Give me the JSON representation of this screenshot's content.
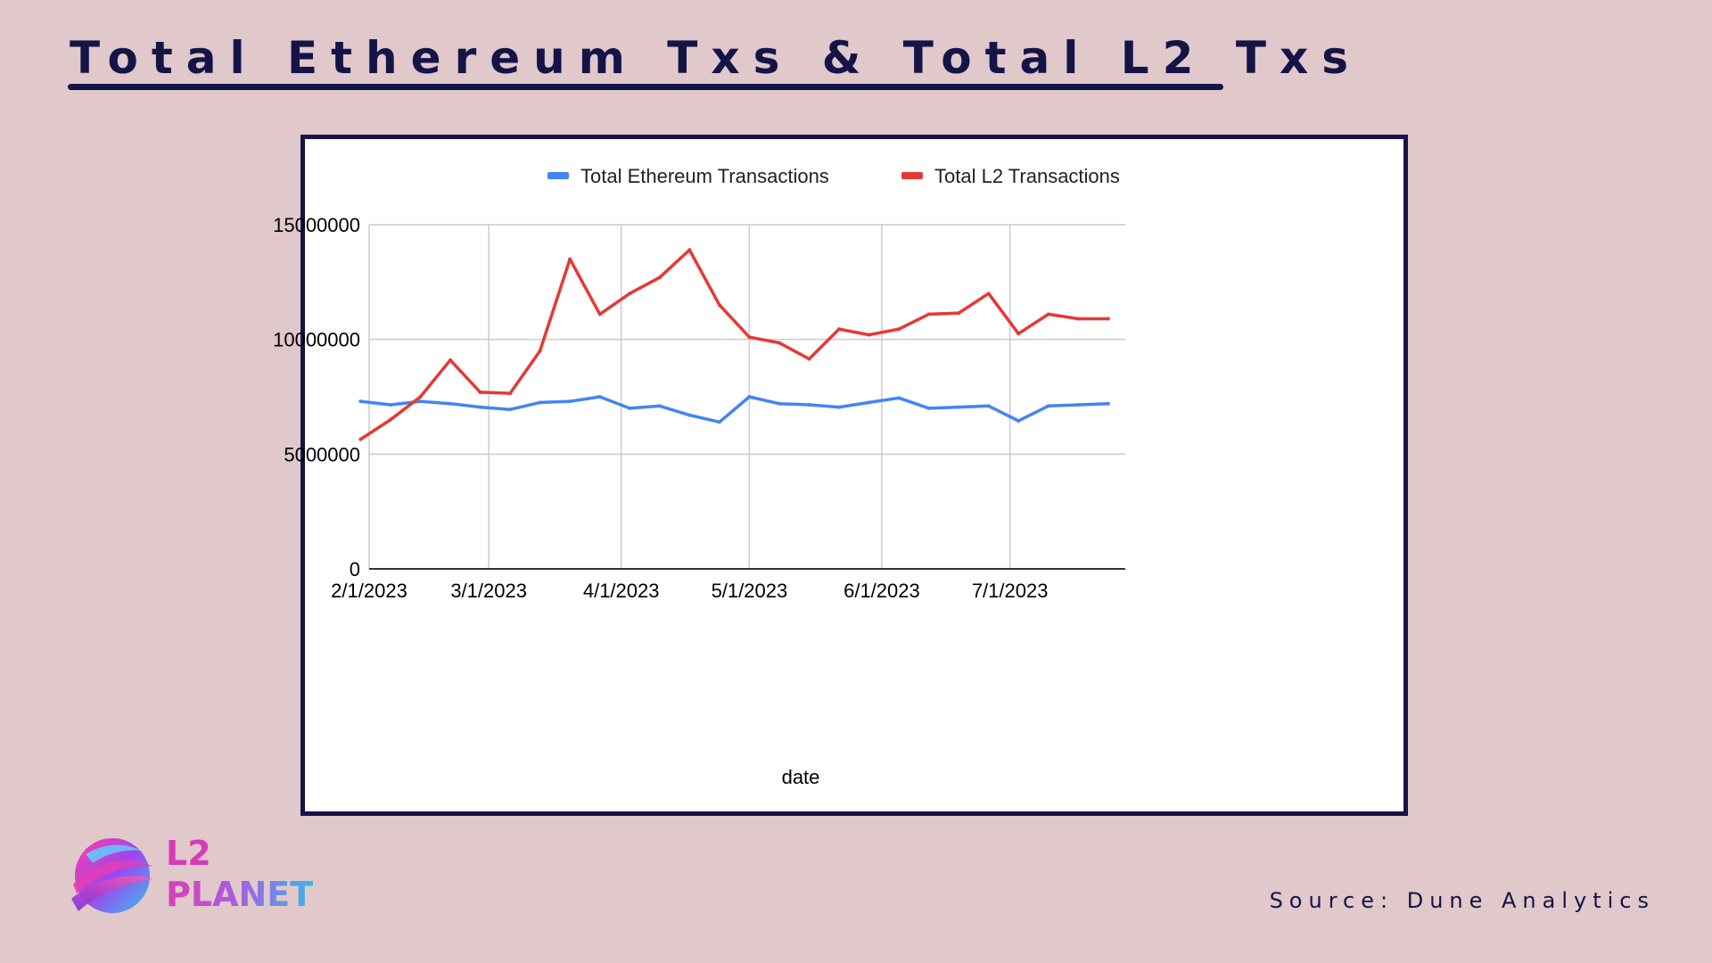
{
  "page": {
    "title": "Total Ethereum Txs & Total L2 Txs",
    "source": "Source: Dune Analytics",
    "logo_line1": "L2",
    "logo_line2": "PLANET"
  },
  "colors": {
    "background": "#e0c8cb",
    "title": "#141447",
    "eth_series": "#4285f4",
    "l2_series": "#e53935"
  },
  "chart_data": {
    "type": "line",
    "title": "",
    "xlabel": "date",
    "ylabel": "",
    "ylim": [
      0,
      15000000
    ],
    "yticks": [
      0,
      5000000,
      10000000,
      15000000
    ],
    "ytick_labels": [
      "0",
      "5000000",
      "10000000",
      "15000000"
    ],
    "xlim": [
      "2023-02-01",
      "2023-07-28"
    ],
    "xticks": [
      "2023-02-01",
      "2023-03-01",
      "2023-04-01",
      "2023-05-01",
      "2023-06-01",
      "2023-07-01"
    ],
    "xtick_labels": [
      "2/1/2023",
      "3/1/2023",
      "4/1/2023",
      "5/1/2023",
      "6/1/2023",
      "7/1/2023"
    ],
    "grid": true,
    "legend": "top",
    "x": [
      "2023-01-30",
      "2023-02-06",
      "2023-02-13",
      "2023-02-20",
      "2023-02-27",
      "2023-03-06",
      "2023-03-13",
      "2023-03-20",
      "2023-03-27",
      "2023-04-03",
      "2023-04-10",
      "2023-04-17",
      "2023-04-24",
      "2023-05-01",
      "2023-05-08",
      "2023-05-15",
      "2023-05-22",
      "2023-05-29",
      "2023-06-05",
      "2023-06-12",
      "2023-06-19",
      "2023-06-26",
      "2023-07-03",
      "2023-07-10",
      "2023-07-17",
      "2023-07-24"
    ],
    "series": [
      {
        "name": "Total Ethereum Transactions",
        "color": "#4285f4",
        "values": [
          7300000,
          7150000,
          7300000,
          7200000,
          7050000,
          6950000,
          7250000,
          7300000,
          7500000,
          7000000,
          7100000,
          6700000,
          6400000,
          7500000,
          7200000,
          7150000,
          7050000,
          7250000,
          7450000,
          7000000,
          7050000,
          7100000,
          6450000,
          7100000,
          7150000,
          7200000
        ]
      },
      {
        "name": "Total L2 Transactions",
        "color": "#e53935",
        "values": [
          5650000,
          6500000,
          7500000,
          9100000,
          7700000,
          7650000,
          9500000,
          13500000,
          11100000,
          12000000,
          12700000,
          13900000,
          11500000,
          10100000,
          9850000,
          9150000,
          10450000,
          10200000,
          10450000,
          11100000,
          11150000,
          12000000,
          10250000,
          11100000,
          10900000,
          10900000
        ]
      }
    ]
  }
}
